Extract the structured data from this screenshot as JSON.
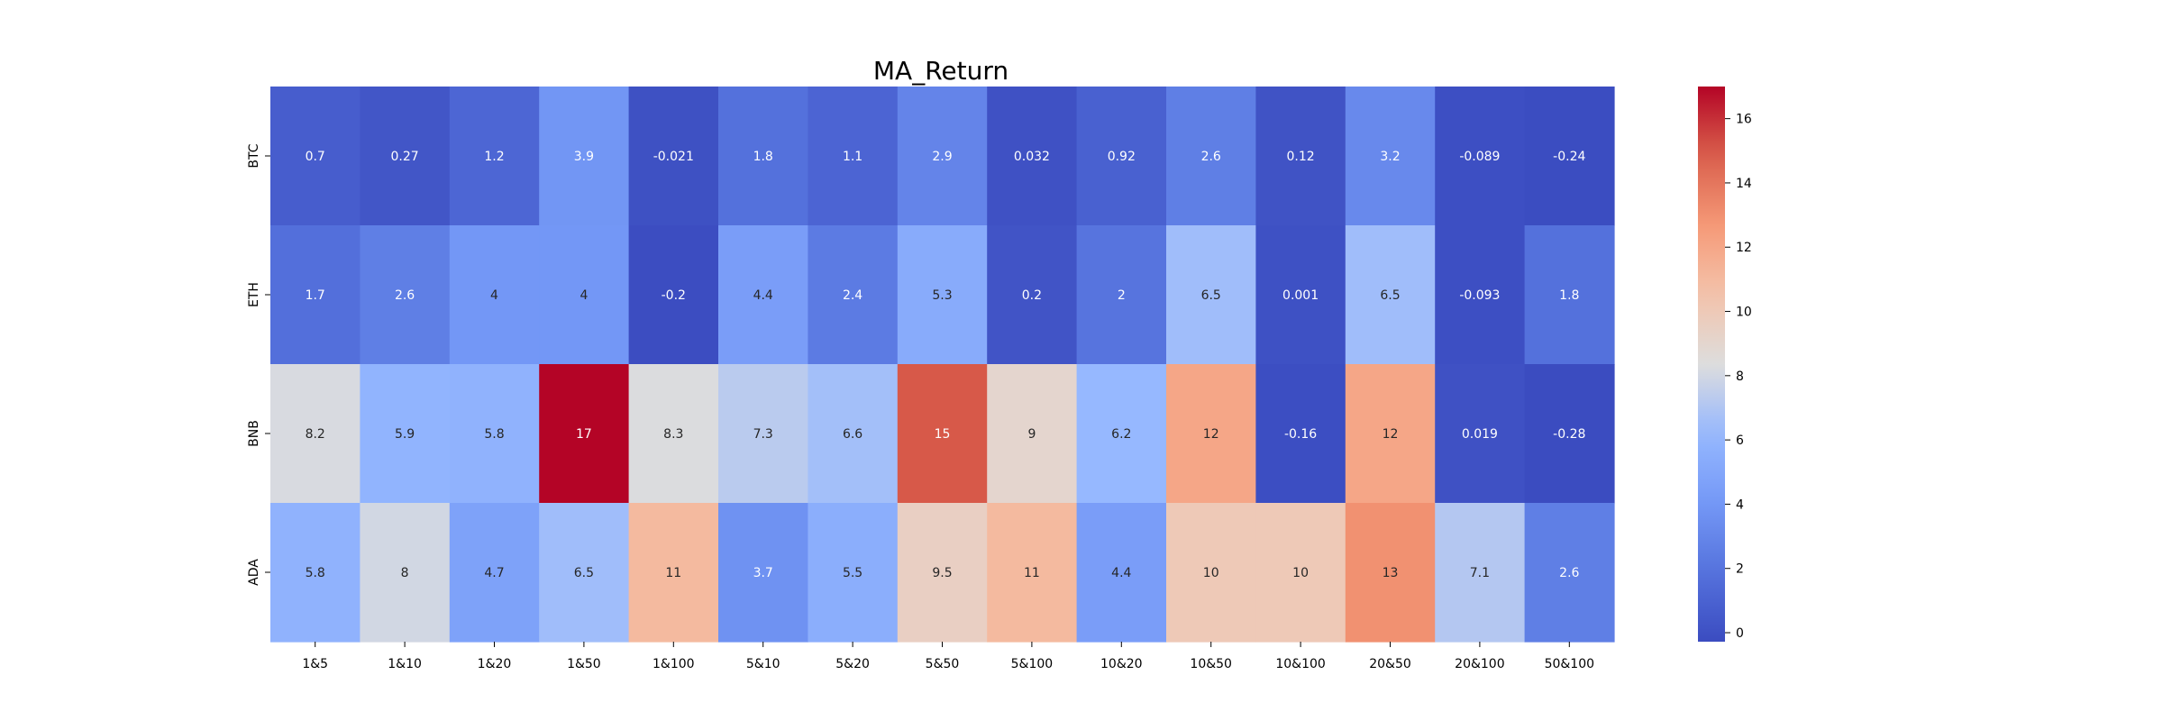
{
  "chart_data": {
    "type": "heatmap",
    "title": "MA_Return",
    "xlabel": "",
    "ylabel": "",
    "x_categories": [
      "1&5",
      "1&10",
      "1&20",
      "1&50",
      "1&100",
      "5&10",
      "5&20",
      "5&50",
      "5&100",
      "10&20",
      "10&50",
      "10&100",
      "20&50",
      "20&100",
      "50&100"
    ],
    "y_categories": [
      "BTC",
      "ETH",
      "BNB",
      "ADA"
    ],
    "values": [
      [
        0.7,
        0.27,
        1.2,
        3.9,
        -0.021,
        1.8,
        1.1,
        2.9,
        0.032,
        0.92,
        2.6,
        0.12,
        3.2,
        -0.089,
        -0.24
      ],
      [
        1.7,
        2.6,
        4,
        4,
        -0.2,
        4.4,
        2.4,
        5.3,
        0.2,
        2,
        6.5,
        0.001,
        6.5,
        -0.093,
        1.8
      ],
      [
        8.2,
        5.9,
        5.8,
        17,
        8.3,
        7.3,
        6.6,
        15,
        9,
        6.2,
        12,
        -0.16,
        12,
        0.019,
        -0.28
      ],
      [
        5.8,
        8,
        4.7,
        6.5,
        11,
        3.7,
        5.5,
        9.5,
        11,
        4.4,
        10,
        10,
        13,
        7.1,
        2.6
      ]
    ],
    "colormap": "coolwarm",
    "vmin": -0.28,
    "vmax": 17,
    "colorbar_ticks": [
      "0",
      "2",
      "4",
      "6",
      "8",
      "10",
      "12",
      "14",
      "16"
    ],
    "annotations": "cell values"
  }
}
